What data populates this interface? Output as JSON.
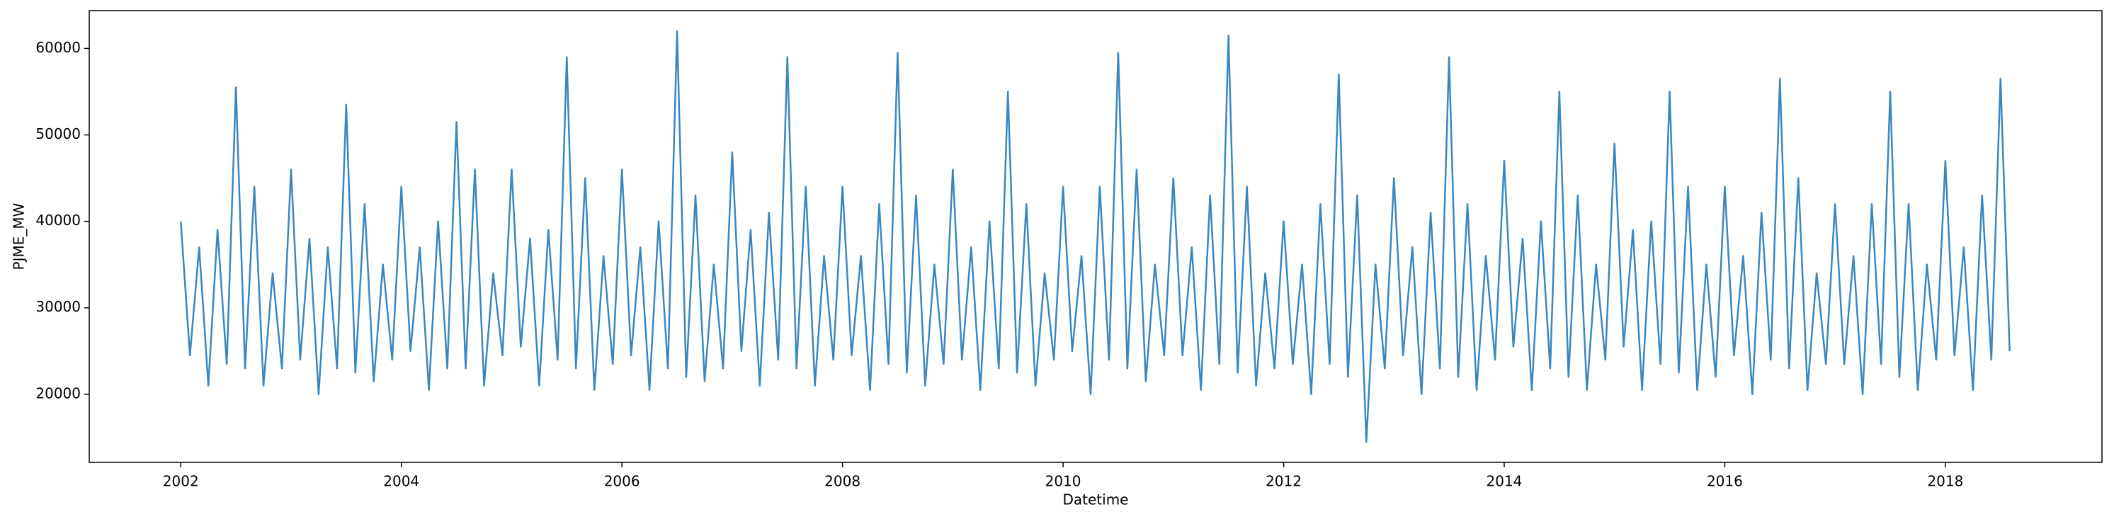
{
  "chart_data": {
    "type": "line",
    "xlabel": "Datetime",
    "ylabel": "PJME_MW",
    "xlim": [
      2001.17,
      2019.42
    ],
    "xticks": [
      2002,
      2004,
      2006,
      2008,
      2010,
      2012,
      2014,
      2016,
      2018
    ],
    "ylim": [
      12125,
      64375
    ],
    "yticks": [
      20000,
      30000,
      40000,
      50000,
      60000
    ],
    "grid": false,
    "series": [
      {
        "name": "PJME_MW",
        "color": "#3a87c0",
        "x": [
          2002,
          2002.083,
          2002.167,
          2002.25,
          2002.333,
          2002.417,
          2002.5,
          2002.583,
          2002.667,
          2002.75,
          2002.833,
          2002.917,
          2003,
          2003.083,
          2003.167,
          2003.25,
          2003.333,
          2003.417,
          2003.5,
          2003.583,
          2003.667,
          2003.75,
          2003.833,
          2003.917,
          2004,
          2004.083,
          2004.167,
          2004.25,
          2004.333,
          2004.417,
          2004.5,
          2004.583,
          2004.667,
          2004.75,
          2004.833,
          2004.917,
          2005,
          2005.083,
          2005.167,
          2005.25,
          2005.333,
          2005.417,
          2005.5,
          2005.583,
          2005.667,
          2005.75,
          2005.833,
          2005.917,
          2006,
          2006.083,
          2006.167,
          2006.25,
          2006.333,
          2006.417,
          2006.5,
          2006.583,
          2006.667,
          2006.75,
          2006.833,
          2006.917,
          2007,
          2007.083,
          2007.167,
          2007.25,
          2007.333,
          2007.417,
          2007.5,
          2007.583,
          2007.667,
          2007.75,
          2007.833,
          2007.917,
          2008,
          2008.083,
          2008.167,
          2008.25,
          2008.333,
          2008.417,
          2008.5,
          2008.583,
          2008.667,
          2008.75,
          2008.833,
          2008.917,
          2009,
          2009.083,
          2009.167,
          2009.25,
          2009.333,
          2009.417,
          2009.5,
          2009.583,
          2009.667,
          2009.75,
          2009.833,
          2009.917,
          2010,
          2010.083,
          2010.167,
          2010.25,
          2010.333,
          2010.417,
          2010.5,
          2010.583,
          2010.667,
          2010.75,
          2010.833,
          2010.917,
          2011,
          2011.083,
          2011.167,
          2011.25,
          2011.333,
          2011.417,
          2011.5,
          2011.583,
          2011.667,
          2011.75,
          2011.833,
          2011.917,
          2012,
          2012.083,
          2012.167,
          2012.25,
          2012.333,
          2012.417,
          2012.5,
          2012.583,
          2012.667,
          2012.75,
          2012.833,
          2012.917,
          2013,
          2013.083,
          2013.167,
          2013.25,
          2013.333,
          2013.417,
          2013.5,
          2013.583,
          2013.667,
          2013.75,
          2013.833,
          2013.917,
          2014,
          2014.083,
          2014.167,
          2014.25,
          2014.333,
          2014.417,
          2014.5,
          2014.583,
          2014.667,
          2014.75,
          2014.833,
          2014.917,
          2015,
          2015.083,
          2015.167,
          2015.25,
          2015.333,
          2015.417,
          2015.5,
          2015.583,
          2015.667,
          2015.75,
          2015.833,
          2015.917,
          2016,
          2016.083,
          2016.167,
          2016.25,
          2016.333,
          2016.417,
          2016.5,
          2016.583,
          2016.667,
          2016.75,
          2016.833,
          2016.917,
          2017,
          2017.083,
          2017.167,
          2017.25,
          2017.333,
          2017.417,
          2017.5,
          2017.583,
          2017.667,
          2017.75,
          2017.833,
          2017.917,
          2018,
          2018.083,
          2018.167,
          2018.25,
          2018.333,
          2018.417,
          2018.5,
          2018.583
        ],
        "values": [
          40000,
          24500,
          37000,
          21000,
          39000,
          23500,
          55500,
          23000,
          44000,
          21000,
          34000,
          23000,
          46000,
          24000,
          38000,
          20000,
          37000,
          23000,
          53500,
          22500,
          42000,
          21500,
          35000,
          24000,
          44000,
          25000,
          37000,
          20500,
          40000,
          23000,
          51500,
          23000,
          46000,
          21000,
          34000,
          24500,
          46000,
          25500,
          38000,
          21000,
          39000,
          24000,
          59000,
          23000,
          45000,
          20500,
          36000,
          23500,
          46000,
          24500,
          37000,
          20500,
          40000,
          23000,
          62000,
          22000,
          43000,
          21500,
          35000,
          23000,
          48000,
          25000,
          39000,
          21000,
          41000,
          24000,
          59000,
          23000,
          44000,
          21000,
          36000,
          24000,
          44000,
          24500,
          36000,
          20500,
          42000,
          23500,
          59500,
          22500,
          43000,
          21000,
          35000,
          23500,
          46000,
          24000,
          37000,
          20500,
          40000,
          23000,
          55000,
          22500,
          42000,
          21000,
          34000,
          24000,
          44000,
          25000,
          36000,
          20000,
          44000,
          24000,
          59500,
          23000,
          46000,
          21500,
          35000,
          24500,
          45000,
          24500,
          37000,
          20500,
          43000,
          23500,
          61500,
          22500,
          44000,
          21000,
          34000,
          23000,
          40000,
          23500,
          35000,
          20000,
          42000,
          23500,
          57000,
          22000,
          43000,
          14500,
          35000,
          23000,
          45000,
          24500,
          37000,
          20000,
          41000,
          23000,
          59000,
          22000,
          42000,
          20500,
          36000,
          24000,
          47000,
          25500,
          38000,
          20500,
          40000,
          23000,
          55000,
          22000,
          43000,
          20500,
          35000,
          24000,
          49000,
          25500,
          39000,
          20500,
          40000,
          23500,
          55000,
          22500,
          44000,
          20500,
          35000,
          22000,
          44000,
          24500,
          36000,
          20000,
          41000,
          24000,
          56500,
          23000,
          45000,
          20500,
          34000,
          23500,
          42000,
          23500,
          36000,
          20000,
          42000,
          23500,
          55000,
          22000,
          42000,
          20500,
          35000,
          24000,
          47000,
          24500,
          37000,
          20500,
          43000,
          24000,
          56500,
          25000
        ]
      }
    ]
  }
}
